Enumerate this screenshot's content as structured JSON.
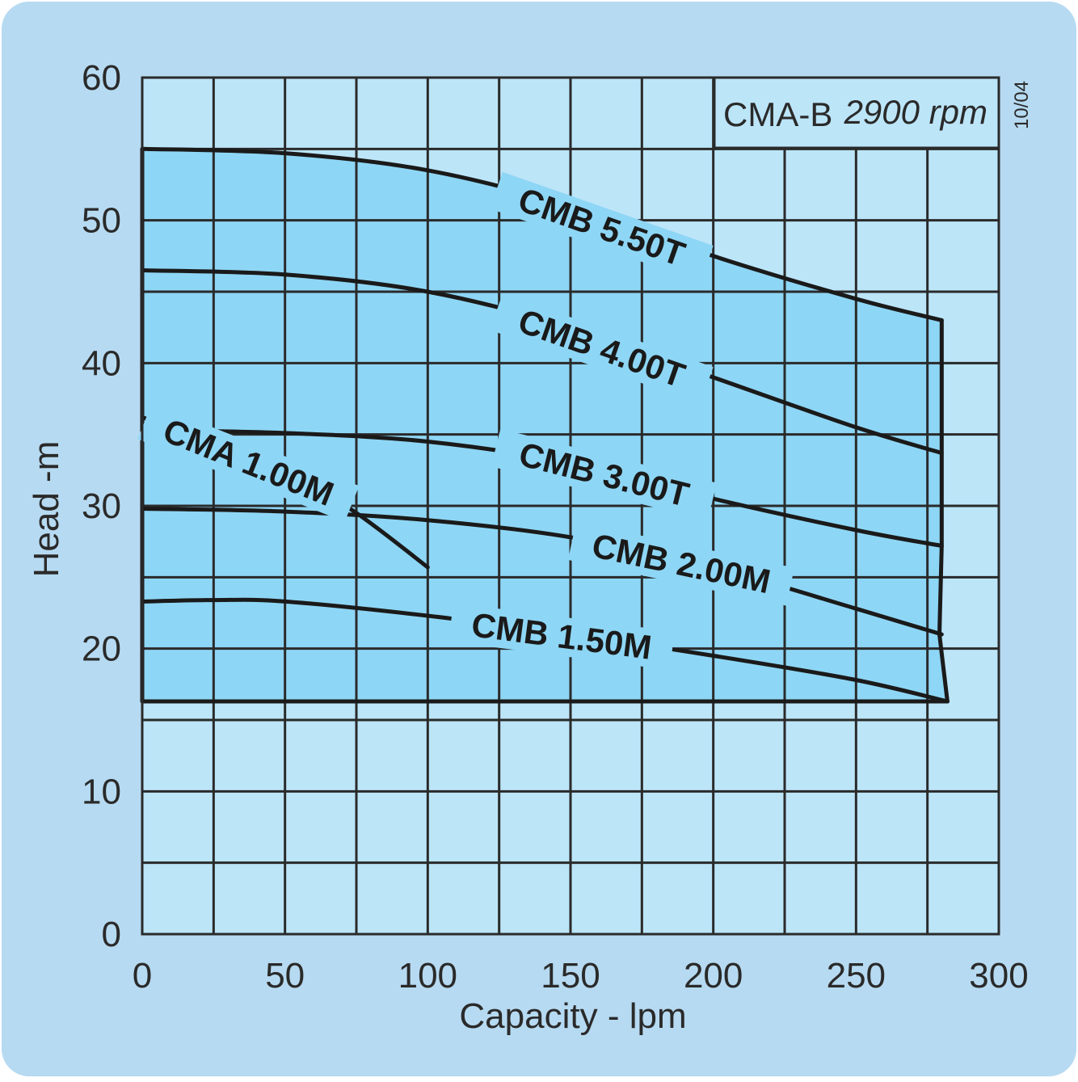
{
  "chart_data": {
    "type": "line",
    "title": "CMA-B",
    "speed": "2900 rpm",
    "revision": "10/04",
    "xlabel": "Capacity - lpm",
    "ylabel": "Head -m",
    "xlim": [
      0,
      300
    ],
    "ylim": [
      0,
      60
    ],
    "x_ticks": [
      "0",
      "50",
      "100",
      "150",
      "200",
      "250",
      "300"
    ],
    "y_ticks": [
      "0",
      "10",
      "20",
      "30",
      "40",
      "50",
      "60"
    ],
    "grid": true,
    "colors": {
      "panel": "#b6daf1",
      "plot_bg": "#bce5f8",
      "envelope": "#8ed6f5",
      "line": "#1a1a1a",
      "grid": "#2a2a2a"
    },
    "envelope": {
      "x": [
        0,
        0,
        280,
        282,
        280,
        280
      ],
      "y": [
        16.3,
        55,
        43,
        16.3,
        21,
        43
      ]
    },
    "series": [
      {
        "name": "CMB 5.50T",
        "x": [
          0,
          50,
          100,
          150,
          200,
          250,
          280
        ],
        "y": [
          55,
          54.7,
          53.5,
          51,
          47.5,
          44.5,
          43
        ]
      },
      {
        "name": "CMB 4.00T",
        "x": [
          0,
          50,
          100,
          150,
          200,
          250,
          280
        ],
        "y": [
          46.5,
          46.2,
          45,
          42.5,
          39,
          35.5,
          33.7
        ]
      },
      {
        "name": "CMB 3.00T",
        "x": [
          0,
          50,
          100,
          150,
          200,
          250,
          280
        ],
        "y": [
          35.3,
          35.1,
          34.5,
          33,
          30.5,
          28.3,
          27.2
        ]
      },
      {
        "name": "CMB 2.00M",
        "x": [
          0,
          50,
          100,
          150,
          200,
          250,
          280
        ],
        "y": [
          29.8,
          29.6,
          29,
          27.8,
          25.7,
          22.8,
          21
        ]
      },
      {
        "name": "CMB 1.50M",
        "x": [
          0,
          25,
          50,
          100,
          150,
          200,
          250,
          282
        ],
        "y": [
          23.3,
          23.4,
          23.3,
          22.3,
          21,
          19.5,
          17.8,
          16.3
        ]
      },
      {
        "name": "CMA 1.00M",
        "x": [
          0,
          25,
          50,
          75,
          100
        ],
        "y": [
          36.2,
          34.5,
          32.5,
          29.5,
          25.7
        ]
      }
    ]
  }
}
